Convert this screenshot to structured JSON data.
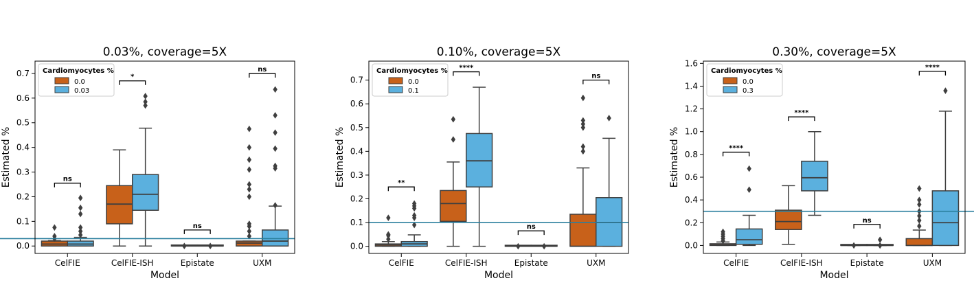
{
  "chart_data": [
    {
      "type": "box",
      "title": "0.03%, coverage=5X",
      "xlabel": "Model",
      "ylabel": "Estimated %",
      "categories": [
        "CelFIE",
        "CelFIE-ISH",
        "Epistate",
        "UXM"
      ],
      "ylim": [
        -0.03,
        0.75
      ],
      "yticks": [
        0.0,
        0.1,
        0.2,
        0.3,
        0.4,
        0.5,
        0.6,
        0.7
      ],
      "ytick_labels": [
        "0.0",
        "0.1",
        "0.2",
        "0.3",
        "0.4",
        "0.5",
        "0.6",
        "0.7"
      ],
      "reference_line": 0.03,
      "legend": {
        "title": "Cardiomyocytes %",
        "labels": [
          "0.0",
          "0.03"
        ],
        "location": "upper-left"
      },
      "series": [
        {
          "name": "0.0",
          "color": "#c8611a",
          "boxes": [
            {
              "q1": 0.0,
              "median": 0.008,
              "q3": 0.02,
              "whislo": 0.0,
              "whishi": 0.022,
              "fliers": [
                0.03,
                0.04,
                0.075
              ]
            },
            {
              "q1": 0.09,
              "median": 0.17,
              "q3": 0.245,
              "whislo": 0.0,
              "whishi": 0.39,
              "fliers": []
            },
            {
              "q1": 0.0,
              "median": 0.0,
              "q3": 0.0,
              "whislo": 0.0,
              "whishi": 0.0,
              "fliers": [
                0.0
              ]
            },
            {
              "q1": 0.0,
              "median": 0.012,
              "q3": 0.02,
              "whislo": 0.0,
              "whishi": 0.02,
              "fliers": [
                0.04,
                0.06,
                0.08,
                0.09,
                0.2,
                0.23,
                0.25,
                0.31,
                0.35,
                0.4,
                0.475
              ]
            }
          ]
        },
        {
          "name": "0.03",
          "color": "#5bb0de",
          "boxes": [
            {
              "q1": 0.0,
              "median": 0.008,
              "q3": 0.02,
              "whislo": 0.0,
              "whishi": 0.035,
              "fliers": [
                0.045,
                0.06,
                0.075,
                0.13,
                0.155,
                0.195
              ]
            },
            {
              "q1": 0.145,
              "median": 0.21,
              "q3": 0.29,
              "whislo": 0.0,
              "whishi": 0.478,
              "fliers": [
                0.57,
                0.585,
                0.608
              ]
            },
            {
              "q1": 0.0,
              "median": 0.0,
              "q3": 0.0,
              "whislo": 0.0,
              "whishi": 0.0,
              "fliers": [
                0.0
              ]
            },
            {
              "q1": 0.0,
              "median": 0.02,
              "q3": 0.065,
              "whislo": 0.0,
              "whishi": 0.162,
              "fliers": [
                0.165,
                0.315,
                0.325,
                0.395,
                0.46,
                0.53,
                0.635
              ]
            }
          ]
        }
      ],
      "significance": [
        {
          "category": "CelFIE",
          "label": "ns",
          "y": 0.255
        },
        {
          "category": "CelFIE-ISH",
          "label": "*",
          "y": 0.67
        },
        {
          "category": "Epistate",
          "label": "ns",
          "y": 0.065
        },
        {
          "category": "UXM",
          "label": "ns",
          "y": 0.7
        }
      ]
    },
    {
      "type": "box",
      "title": "0.10%, coverage=5X",
      "xlabel": "Model",
      "ylabel": "Estimated %",
      "categories": [
        "CelFIE",
        "CelFIE-ISH",
        "Epistate",
        "UXM"
      ],
      "ylim": [
        -0.03,
        0.78
      ],
      "yticks": [
        0.0,
        0.1,
        0.2,
        0.3,
        0.4,
        0.5,
        0.6,
        0.7
      ],
      "ytick_labels": [
        "0.0",
        "0.1",
        "0.2",
        "0.3",
        "0.4",
        "0.5",
        "0.6",
        "0.7"
      ],
      "reference_line": 0.1,
      "legend": {
        "title": "Cardiomyocytes %",
        "labels": [
          "0.0",
          "0.1"
        ],
        "location": "upper-left"
      },
      "series": [
        {
          "name": "0.0",
          "color": "#c8611a",
          "boxes": [
            {
              "q1": 0.0,
              "median": 0.005,
              "q3": 0.01,
              "whislo": 0.0,
              "whishi": 0.02,
              "fliers": [
                0.03,
                0.045,
                0.05,
                0.12
              ]
            },
            {
              "q1": 0.105,
              "median": 0.18,
              "q3": 0.235,
              "whislo": 0.0,
              "whishi": 0.355,
              "fliers": [
                0.45,
                0.535
              ]
            },
            {
              "q1": 0.0,
              "median": 0.0,
              "q3": 0.0,
              "whislo": 0.0,
              "whishi": 0.0,
              "fliers": [
                0.0
              ]
            },
            {
              "q1": 0.0,
              "median": 0.0,
              "q3": 0.135,
              "whislo": 0.0,
              "whishi": 0.33,
              "fliers": [
                0.4,
                0.42,
                0.5,
                0.515,
                0.53,
                0.625
              ]
            }
          ]
        },
        {
          "name": "0.1",
          "color": "#5bb0de",
          "boxes": [
            {
              "q1": 0.0,
              "median": 0.01,
              "q3": 0.02,
              "whislo": 0.0,
              "whishi": 0.048,
              "fliers": [
                0.09,
                0.12,
                0.13,
                0.16,
                0.17,
                0.18
              ]
            },
            {
              "q1": 0.25,
              "median": 0.36,
              "q3": 0.475,
              "whislo": 0.0,
              "whishi": 0.67,
              "fliers": []
            },
            {
              "q1": 0.0,
              "median": 0.0,
              "q3": 0.0,
              "whislo": 0.0,
              "whishi": 0.0,
              "fliers": [
                0.0
              ]
            },
            {
              "q1": 0.0,
              "median": 0.1,
              "q3": 0.205,
              "whislo": 0.0,
              "whishi": 0.455,
              "fliers": [
                0.54
              ]
            }
          ]
        }
      ],
      "significance": [
        {
          "category": "CelFIE",
          "label": "**",
          "y": 0.25
        },
        {
          "category": "CelFIE-ISH",
          "label": "****",
          "y": 0.735
        },
        {
          "category": "Epistate",
          "label": "ns",
          "y": 0.065
        },
        {
          "category": "UXM",
          "label": "ns",
          "y": 0.7
        }
      ]
    },
    {
      "type": "box",
      "title": "0.30%, coverage=5X",
      "xlabel": "Model",
      "ylabel": "Estimated %",
      "categories": [
        "CelFIE",
        "CelFIE-ISH",
        "Epistate",
        "UXM"
      ],
      "ylim": [
        -0.07,
        1.62
      ],
      "yticks": [
        0.0,
        0.2,
        0.4,
        0.6,
        0.8,
        1.0,
        1.2,
        1.4,
        1.6
      ],
      "ytick_labels": [
        "0.0",
        "0.2",
        "0.4",
        "0.6",
        "0.8",
        "1.0",
        "1.2",
        "1.4",
        "1.6"
      ],
      "reference_line": 0.3,
      "legend": {
        "title": "Cardiomyocytes %",
        "labels": [
          "0.0",
          "0.3"
        ],
        "location": "upper-left"
      },
      "series": [
        {
          "name": "0.0",
          "color": "#c8611a",
          "boxes": [
            {
              "q1": 0.0,
              "median": 0.005,
              "q3": 0.015,
              "whislo": 0.0,
              "whishi": 0.03,
              "fliers": [
                0.04,
                0.06,
                0.08,
                0.1,
                0.12
              ]
            },
            {
              "q1": 0.14,
              "median": 0.21,
              "q3": 0.31,
              "whislo": 0.01,
              "whishi": 0.525,
              "fliers": []
            },
            {
              "q1": 0.0,
              "median": 0.0,
              "q3": 0.0,
              "whislo": 0.0,
              "whishi": 0.0,
              "fliers": [
                0.0
              ]
            },
            {
              "q1": 0.0,
              "median": 0.0,
              "q3": 0.06,
              "whislo": 0.0,
              "whishi": 0.135,
              "fliers": [
                0.17,
                0.22,
                0.26,
                0.3,
                0.36,
                0.4,
                0.5
              ]
            }
          ]
        },
        {
          "name": "0.3",
          "color": "#5bb0de",
          "boxes": [
            {
              "q1": 0.01,
              "median": 0.05,
              "q3": 0.145,
              "whislo": 0.0,
              "whishi": 0.265,
              "fliers": [
                0.49,
                0.675
              ]
            },
            {
              "q1": 0.48,
              "median": 0.595,
              "q3": 0.74,
              "whislo": 0.265,
              "whishi": 1.0,
              "fliers": []
            },
            {
              "q1": 0.0,
              "median": 0.0,
              "q3": 0.0,
              "whislo": 0.0,
              "whishi": 0.0,
              "fliers": [
                0.0,
                0.05
              ]
            },
            {
              "q1": 0.0,
              "median": 0.2,
              "q3": 0.48,
              "whislo": 0.0,
              "whishi": 1.18,
              "fliers": [
                1.36
              ]
            }
          ]
        }
      ],
      "significance": [
        {
          "category": "CelFIE",
          "label": "****",
          "y": 0.82
        },
        {
          "category": "CelFIE-ISH",
          "label": "****",
          "y": 1.13
        },
        {
          "category": "Epistate",
          "label": "ns",
          "y": 0.185
        },
        {
          "category": "UXM",
          "label": "****",
          "y": 1.53
        }
      ]
    }
  ]
}
